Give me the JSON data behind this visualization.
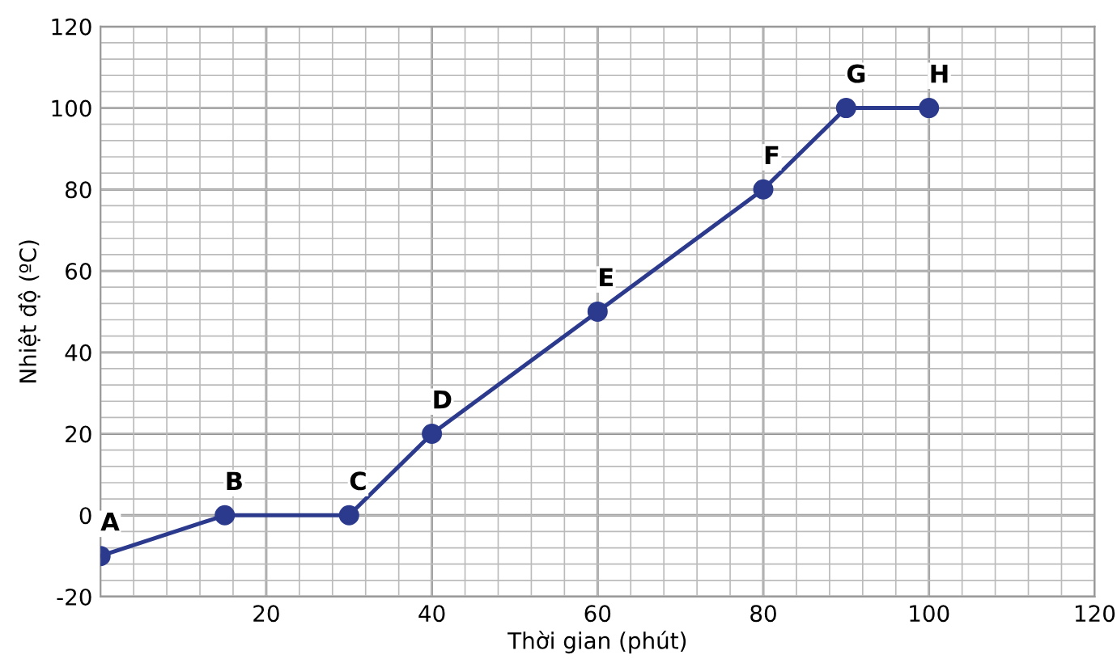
{
  "chart_data": {
    "type": "line",
    "xlabel": "Thời gian (phút)",
    "ylabel": "Nhiệt độ (ºC)",
    "x": [
      0,
      15,
      30,
      40,
      60,
      80,
      90,
      100
    ],
    "series": [
      {
        "color": "#2b3a8c",
        "values": [
          -10,
          0,
          0,
          20,
          50,
          80,
          100,
          100
        ]
      }
    ],
    "xlim": [
      0,
      120
    ],
    "ylim": [
      -20,
      120
    ],
    "xticks": [
      20,
      40,
      60,
      80,
      100,
      120
    ],
    "yticks": [
      -20,
      0,
      20,
      40,
      60,
      80,
      100,
      120
    ],
    "grid": true,
    "marker": "circle",
    "line_style": "solid",
    "annotations": [
      {
        "text": "A",
        "x": 0,
        "y": -10
      },
      {
        "text": "B",
        "x": 15,
        "y": 0
      },
      {
        "text": "C",
        "x": 30,
        "y": 0
      },
      {
        "text": "D",
        "x": 40,
        "y": 20
      },
      {
        "text": "E",
        "x": 60,
        "y": 50
      },
      {
        "text": "F",
        "x": 80,
        "y": 80
      },
      {
        "text": "G",
        "x": 90,
        "y": 100
      },
      {
        "text": "H",
        "x": 100,
        "y": 100
      }
    ]
  }
}
